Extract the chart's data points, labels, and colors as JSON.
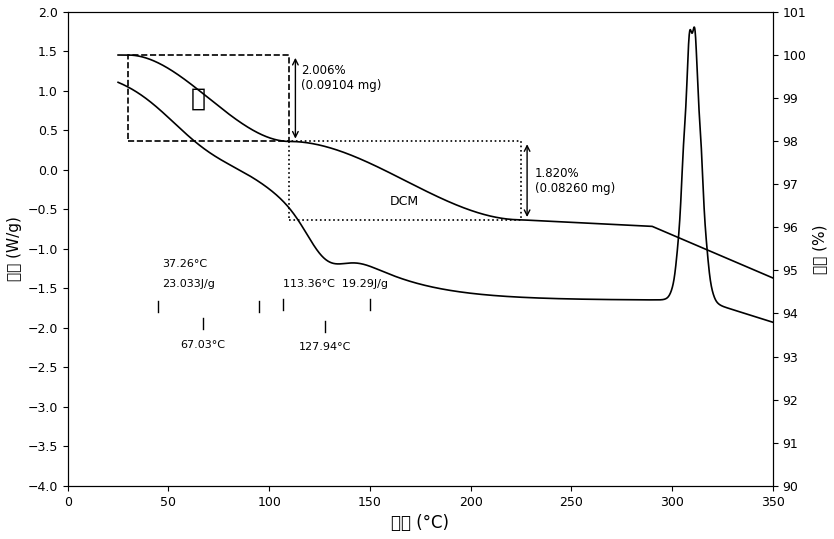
{
  "title": "",
  "xlabel": "温度 (°C)",
  "ylabel_left": "热流 (W/g)",
  "ylabel_right": "重量 (%)",
  "xlim": [
    0,
    350
  ],
  "ylim_left": [
    -4.0,
    2.0
  ],
  "ylim_right": [
    90,
    101
  ],
  "xticks": [
    0,
    50,
    100,
    150,
    200,
    250,
    300,
    350
  ],
  "yticks_left": [
    -4.0,
    -3.5,
    -3.0,
    -2.5,
    -2.0,
    -1.5,
    -1.0,
    -0.5,
    0.0,
    0.5,
    1.0,
    1.5,
    2.0
  ],
  "yticks_right": [
    90,
    91,
    92,
    93,
    94,
    95,
    96,
    97,
    98,
    99,
    100,
    101
  ],
  "water_label": "水",
  "dcm_label": "DCM",
  "pct1_text": "2.006%\n(0.09104 mg)",
  "pct2_text": "1.820%\n(0.08260 mg)",
  "annot1_line1": "37.26°C",
  "annot1_line2": "23.033J/g",
  "annot1_peak": "67.03°C",
  "annot2_line1": "113.36°C  19.29J/g",
  "annot2_peak": "127.94°C",
  "line_color": "#000000",
  "background_color": "#ffffff"
}
